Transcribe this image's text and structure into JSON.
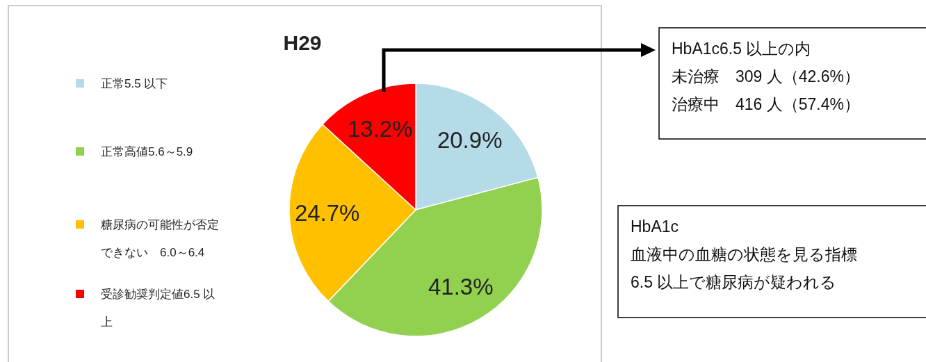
{
  "chart_data": {
    "type": "pie",
    "title": "H29",
    "categories": [
      "正常5.5 以下",
      "正常高値5.6～5.9",
      "糖尿病の可能性が否定できない　6.0～6.4",
      "受診勧奨判定値6.5 以上"
    ],
    "values": [
      20.9,
      41.3,
      24.7,
      13.2
    ],
    "colors": [
      "#b4dbe7",
      "#92d050",
      "#ffc000",
      "#ff0000"
    ],
    "value_labels": [
      "20.9%",
      "41.3%",
      "24.7%",
      "13.2%"
    ],
    "legend": "left",
    "annotations": [
      "HbA1c6.5 以上の内",
      "未治療　309 人（42.6%）",
      "治療中　416 人（57.4%）",
      "HbA1c",
      "血液中の血糖の状態を見る指標",
      "6.5 以上で糖尿病が疑われる"
    ]
  }
}
